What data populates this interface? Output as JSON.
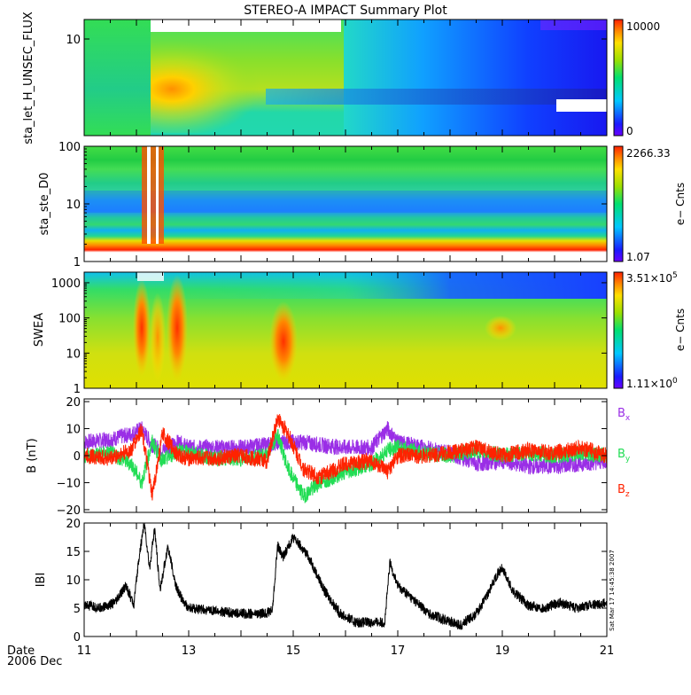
{
  "title": "STEREO-A IMPACT Summary Plot",
  "date_label": "Date",
  "date_sub": "2006 Dec",
  "timestamp": "Sat Mar 17 14:45:38 2007",
  "colors": {
    "bx": "#9a2ee6",
    "by": "#22dd55",
    "bz": "#ff2200",
    "bmag": "#000000"
  },
  "chart_data": [
    {
      "type": "heatmap",
      "ylabel": "sta_let_H_UNSEC_FLUX",
      "yticks": [
        "10"
      ],
      "colorbar": {
        "max": "10000",
        "min": "0",
        "unit": ""
      }
    },
    {
      "type": "heatmap",
      "ylabel": "sta_ste_D0",
      "yticks": [
        "100",
        "10",
        "1"
      ],
      "ylim": [
        1,
        100
      ],
      "yscale": "log",
      "colorbar": {
        "max": "2266.33",
        "min": "1.07",
        "unit": "e− Cnts"
      }
    },
    {
      "type": "heatmap",
      "ylabel": "SWEA",
      "yticks": [
        "1000",
        "100",
        "10",
        "1"
      ],
      "ylim": [
        1,
        2000
      ],
      "yscale": "log",
      "colorbar": {
        "max_mant": "3.51×10",
        "max_exp": "5",
        "min_mant": "1.11×10",
        "min_exp": "0",
        "unit": "e− Cnts"
      }
    },
    {
      "type": "line",
      "ylabel": "B (nT)",
      "yticks": [
        "20",
        "10",
        "0",
        "−10",
        "−20"
      ],
      "ylim": [
        -21,
        21
      ],
      "series": [
        {
          "name": "B",
          "sub": "x",
          "color": "#9a2ee6",
          "x": [
            11,
            11.5,
            11.9,
            12.1,
            12.3,
            12.5,
            12.8,
            13.0,
            13.5,
            14.0,
            14.5,
            14.7,
            14.9,
            15.2,
            15.5,
            16.0,
            16.5,
            16.8,
            17.0,
            17.5,
            18.0,
            18.5,
            19.0,
            19.5,
            20.0,
            20.5,
            21.0
          ],
          "y": [
            5,
            6,
            8,
            10,
            4,
            2,
            5,
            3,
            3,
            3,
            4,
            5,
            5,
            5,
            4,
            3,
            3,
            10,
            5,
            3,
            1,
            -3,
            -2,
            -4,
            -4,
            -3,
            -2
          ]
        },
        {
          "name": "B",
          "sub": "y",
          "color": "#22dd55",
          "x": [
            11,
            11.5,
            11.9,
            12.1,
            12.3,
            12.5,
            12.8,
            13.0,
            13.5,
            14.0,
            14.5,
            14.7,
            14.9,
            15.2,
            15.5,
            16.0,
            16.5,
            16.8,
            17.0,
            17.5,
            18.0,
            18.5,
            19.0,
            19.5,
            20.0,
            20.5,
            21.0
          ],
          "y": [
            0,
            1,
            -3,
            -10,
            5,
            -2,
            2,
            1,
            -1,
            -1,
            0,
            8,
            -5,
            -15,
            -10,
            -6,
            -3,
            2,
            3,
            1,
            0,
            2,
            0,
            1,
            0,
            1,
            0
          ]
        },
        {
          "name": "B",
          "sub": "z",
          "color": "#ff2200",
          "x": [
            11,
            11.5,
            11.9,
            12.1,
            12.3,
            12.5,
            12.8,
            13.0,
            13.5,
            14.0,
            14.5,
            14.7,
            14.9,
            15.2,
            15.5,
            16.0,
            16.5,
            16.8,
            17.0,
            17.5,
            18.0,
            18.5,
            19.0,
            19.5,
            20.0,
            20.5,
            21.0
          ],
          "y": [
            0,
            -1,
            2,
            10,
            -15,
            8,
            0,
            -1,
            -1,
            0,
            -2,
            14,
            8,
            -5,
            -8,
            -3,
            -2,
            -6,
            0,
            0,
            1,
            3,
            0,
            2,
            1,
            3,
            0
          ]
        }
      ]
    },
    {
      "type": "line",
      "ylabel": "IBI",
      "yticks": [
        "20",
        "15",
        "10",
        "5",
        "0"
      ],
      "ylim": [
        0,
        20
      ],
      "xlabel": "",
      "xticks": [
        "11",
        "13",
        "15",
        "17",
        "19",
        "21"
      ],
      "xlim": [
        11,
        21
      ],
      "series": [
        {
          "name": "",
          "color": "#000000",
          "x": [
            11.0,
            11.3,
            11.6,
            11.8,
            11.95,
            12.05,
            12.15,
            12.25,
            12.35,
            12.45,
            12.6,
            12.75,
            12.9,
            13.0,
            13.5,
            14.0,
            14.4,
            14.6,
            14.7,
            14.8,
            15.0,
            15.3,
            15.6,
            15.9,
            16.2,
            16.5,
            16.75,
            16.85,
            17.0,
            17.3,
            17.6,
            17.9,
            18.2,
            18.5,
            18.7,
            18.9,
            19.0,
            19.2,
            19.5,
            19.8,
            20.1,
            20.4,
            20.7,
            21.0
          ],
          "y": [
            5.5,
            5,
            6,
            9,
            5.5,
            14,
            20,
            12,
            19,
            8,
            16,
            9,
            6,
            5,
            4.5,
            4,
            4,
            4.5,
            16,
            14,
            17.5,
            14,
            8,
            4,
            2.5,
            2.5,
            2.5,
            13,
            9,
            6.5,
            4,
            3,
            2,
            4,
            7,
            11,
            12,
            8,
            5.5,
            5,
            6,
            5,
            5.5,
            6
          ]
        }
      ]
    }
  ]
}
